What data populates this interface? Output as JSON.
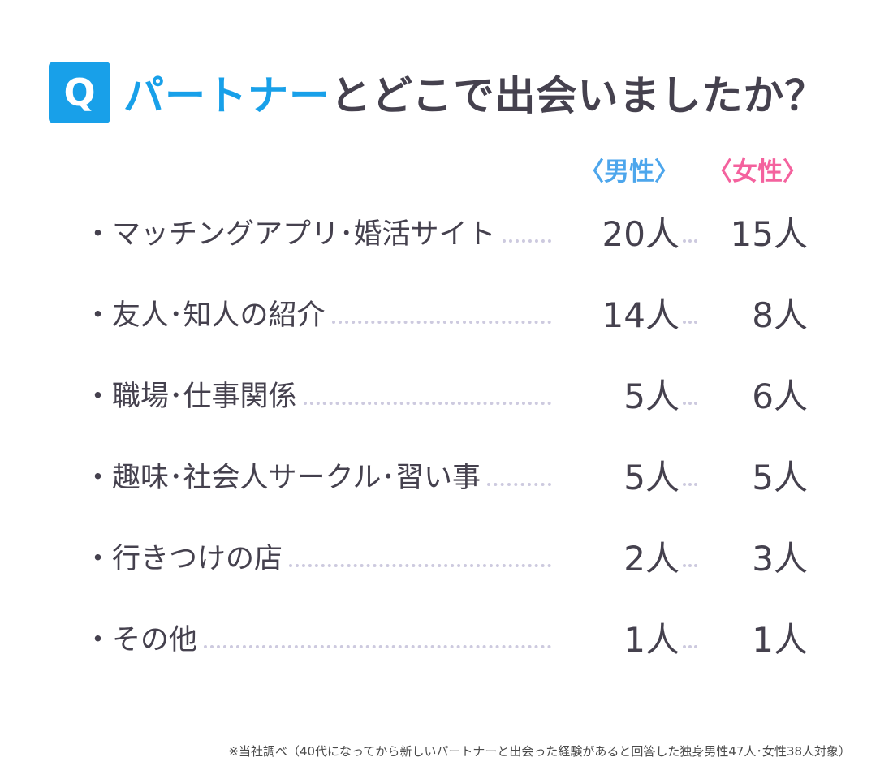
{
  "header": {
    "q": "Q",
    "title_highlight": "パートナー",
    "title_rest": "とどこで出会いましたか？"
  },
  "columns": {
    "male": "〈男性〉",
    "female": "〈女性〉"
  },
  "rows": [
    {
      "label": "・マッチングアプリ･婚活サイト",
      "male": "20人",
      "female": "15人"
    },
    {
      "label": "・友人･知人の紹介",
      "male": "14人",
      "female": "8人"
    },
    {
      "label": "・職場･仕事関係",
      "male": "5人",
      "female": "6人"
    },
    {
      "label": "・趣味･社会人サークル･習い事",
      "male": "5人",
      "female": "5人"
    },
    {
      "label": "・行きつけの店",
      "male": "2人",
      "female": "3人"
    },
    {
      "label": "・その他",
      "male": "1人",
      "female": "1人"
    }
  ],
  "footnote": "※当社調べ（40代になってから新しいパートナーと出会った経験があると回答した独身男性47人･女性38人対象）",
  "colors": {
    "blue": "#18A0E9",
    "pink": "#F4629E",
    "text_dark": "#45414E",
    "leader_dots": "#CDCADF"
  },
  "chart_data": {
    "type": "table",
    "title": "パートナーとどこで出会いましたか？",
    "categories": [
      "マッチングアプリ･婚活サイト",
      "友人･知人の紹介",
      "職場･仕事関係",
      "趣味･社会人サークル･習い事",
      "行きつけの店",
      "その他"
    ],
    "series": [
      {
        "name": "男性",
        "values": [
          20,
          14,
          5,
          5,
          2,
          1
        ]
      },
      {
        "name": "女性",
        "values": [
          15,
          8,
          6,
          5,
          3,
          1
        ]
      }
    ],
    "unit": "人",
    "note": "※当社調べ（40代になってから新しいパートナーと出会った経験があると回答した独身男性47人･女性38人対象）"
  }
}
